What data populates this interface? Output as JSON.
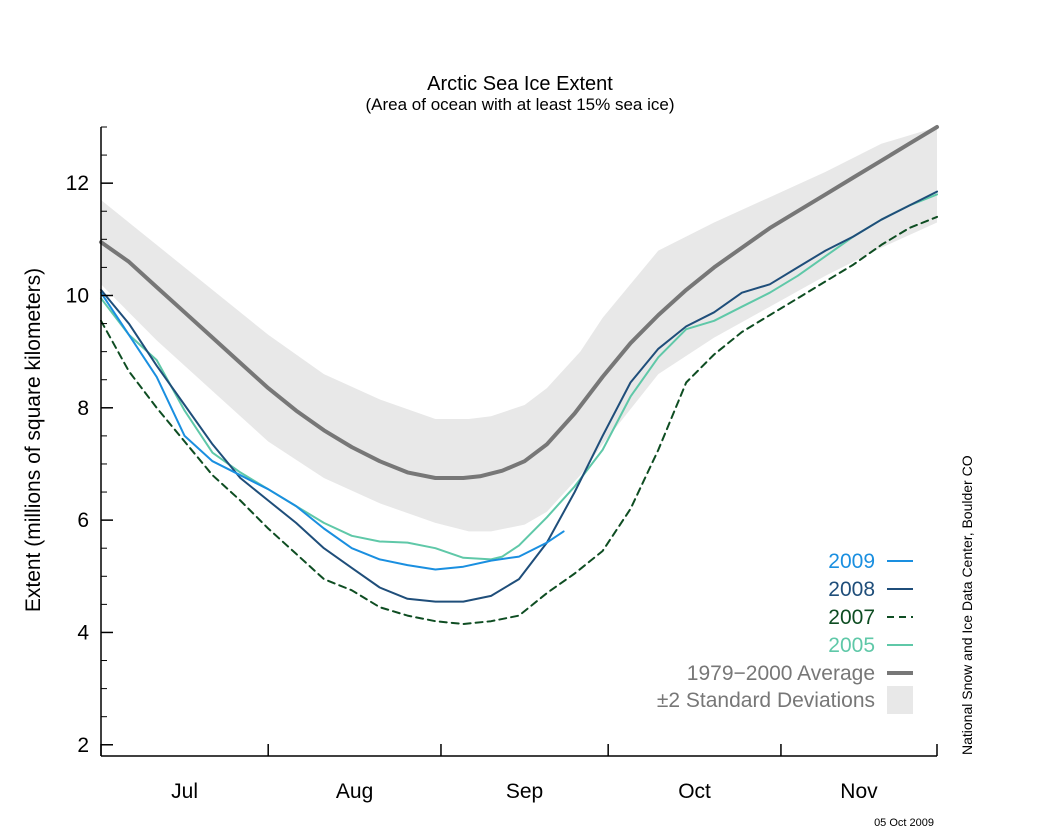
{
  "chart_data": {
    "type": "line",
    "title": "Arctic Sea Ice Extent",
    "subtitle": "(Area of ocean with at least 15% sea ice)",
    "ylabel": "Extent (millions of square kilometers)",
    "ylim": [
      1.8,
      13
    ],
    "xlim": [
      0,
      150
    ],
    "x_ticks": [
      0,
      30,
      61,
      91,
      122,
      150
    ],
    "x_tick_labels": [
      {
        "label": "Jul",
        "x": 15
      },
      {
        "label": "Aug",
        "x": 45.5
      },
      {
        "label": "Sep",
        "x": 76
      },
      {
        "label": "Oct",
        "x": 106.5
      },
      {
        "label": "Nov",
        "x": 136
      }
    ],
    "y_ticks": [
      2,
      4,
      6,
      8,
      10,
      12
    ],
    "y_minor_step": 0.5,
    "credit": "National Snow and Ice Data Center, Boulder CO",
    "date_stamp": "05 Oct 2009",
    "band": {
      "name": "±2 Standard Deviations",
      "color": "#e8e8e8",
      "x": [
        0,
        10,
        20,
        30,
        40,
        50,
        60,
        66,
        70,
        76,
        80,
        86,
        90,
        100,
        110,
        120,
        130,
        140,
        150
      ],
      "upper": [
        11.7,
        10.9,
        10.1,
        9.3,
        8.6,
        8.15,
        7.8,
        7.8,
        7.85,
        8.05,
        8.35,
        9.0,
        9.6,
        10.8,
        11.3,
        11.75,
        12.2,
        12.7,
        13.0
      ],
      "lower": [
        10.2,
        9.2,
        8.3,
        7.4,
        6.75,
        6.3,
        5.95,
        5.8,
        5.8,
        5.92,
        6.15,
        6.8,
        7.35,
        8.6,
        9.25,
        9.8,
        10.35,
        10.85,
        11.3
      ]
    },
    "series": [
      {
        "name": "1979−2000 Average",
        "color": "#777777",
        "width": 4,
        "dash": "",
        "x": [
          0,
          5,
          10,
          15,
          20,
          25,
          30,
          35,
          40,
          45,
          50,
          55,
          60,
          65,
          68,
          72,
          76,
          80,
          85,
          90,
          95,
          100,
          105,
          110,
          115,
          120,
          125,
          130,
          135,
          140,
          145,
          150
        ],
        "y": [
          10.95,
          10.6,
          10.15,
          9.7,
          9.25,
          8.8,
          8.35,
          7.95,
          7.6,
          7.3,
          7.05,
          6.85,
          6.75,
          6.75,
          6.78,
          6.88,
          7.05,
          7.35,
          7.9,
          8.55,
          9.15,
          9.65,
          10.1,
          10.5,
          10.85,
          11.2,
          11.5,
          11.8,
          12.1,
          12.4,
          12.7,
          13.0
        ]
      },
      {
        "name": "2005",
        "color": "#5fc8a8",
        "width": 2,
        "dash": "",
        "x": [
          0,
          5,
          10,
          15,
          20,
          25,
          30,
          35,
          40,
          45,
          50,
          55,
          60,
          65,
          70,
          72,
          75,
          80,
          85,
          90,
          95,
          100,
          105,
          110,
          115,
          120,
          125,
          130,
          135,
          140,
          145,
          150
        ],
        "y": [
          9.95,
          9.3,
          8.85,
          7.95,
          7.2,
          6.85,
          6.55,
          6.25,
          5.95,
          5.72,
          5.62,
          5.6,
          5.5,
          5.33,
          5.3,
          5.35,
          5.55,
          6.05,
          6.6,
          7.25,
          8.2,
          8.9,
          9.4,
          9.55,
          9.8,
          10.05,
          10.35,
          10.7,
          11.05,
          11.35,
          11.6,
          11.8
        ]
      },
      {
        "name": "2007",
        "color": "#0e4d22",
        "width": 2,
        "dash": "7,5",
        "x": [
          0,
          5,
          10,
          15,
          20,
          25,
          30,
          35,
          40,
          45,
          50,
          55,
          60,
          65,
          70,
          75,
          80,
          85,
          90,
          95,
          100,
          105,
          110,
          115,
          120,
          125,
          130,
          135,
          140,
          145,
          150
        ],
        "y": [
          9.55,
          8.65,
          8.0,
          7.4,
          6.8,
          6.35,
          5.85,
          5.4,
          4.95,
          4.75,
          4.45,
          4.3,
          4.2,
          4.15,
          4.2,
          4.3,
          4.7,
          5.05,
          5.45,
          6.2,
          7.25,
          8.45,
          8.95,
          9.35,
          9.65,
          9.95,
          10.25,
          10.55,
          10.9,
          11.2,
          11.4
        ]
      },
      {
        "name": "2008",
        "color": "#1f4e7a",
        "width": 2,
        "dash": "",
        "x": [
          0,
          5,
          10,
          15,
          20,
          25,
          30,
          35,
          40,
          45,
          50,
          55,
          60,
          65,
          70,
          75,
          80,
          85,
          90,
          95,
          100,
          105,
          110,
          115,
          120,
          125,
          130,
          135,
          140,
          145,
          150
        ],
        "y": [
          10.1,
          9.5,
          8.75,
          8.05,
          7.35,
          6.75,
          6.35,
          5.95,
          5.5,
          5.15,
          4.8,
          4.6,
          4.55,
          4.55,
          4.65,
          4.95,
          5.6,
          6.5,
          7.5,
          8.45,
          9.05,
          9.45,
          9.7,
          10.05,
          10.2,
          10.5,
          10.8,
          11.05,
          11.35,
          11.6,
          11.85
        ]
      },
      {
        "name": "2009",
        "color": "#1a8fe0",
        "width": 2,
        "dash": "",
        "x": [
          0,
          5,
          10,
          15,
          20,
          25,
          30,
          35,
          40,
          45,
          50,
          55,
          60,
          65,
          70,
          75,
          80,
          83
        ],
        "y": [
          10.05,
          9.3,
          8.55,
          7.5,
          7.05,
          6.8,
          6.55,
          6.25,
          5.85,
          5.5,
          5.3,
          5.2,
          5.12,
          5.17,
          5.28,
          5.35,
          5.6,
          5.8
        ]
      }
    ],
    "legend": {
      "placement": "bottom-right",
      "entries": [
        {
          "label": "2009",
          "color": "#1a8fe0",
          "text_color": "#1a8fe0",
          "kind": "line",
          "dash": "",
          "width": 2
        },
        {
          "label": "2008",
          "color": "#1f4e7a",
          "text_color": "#1f4e7a",
          "kind": "line",
          "dash": "",
          "width": 2
        },
        {
          "label": "2007",
          "color": "#0e4d22",
          "text_color": "#0e4d22",
          "kind": "line",
          "dash": "7,5",
          "width": 2
        },
        {
          "label": "2005",
          "color": "#5fc8a8",
          "text_color": "#5fc8a8",
          "kind": "line",
          "dash": "",
          "width": 2
        },
        {
          "label": "1979−2000 Average",
          "color": "#777777",
          "text_color": "#777777",
          "kind": "line",
          "dash": "",
          "width": 4
        },
        {
          "label": "±2 Standard Deviations",
          "color": "#e8e8e8",
          "text_color": "#777777",
          "kind": "box"
        }
      ]
    }
  }
}
